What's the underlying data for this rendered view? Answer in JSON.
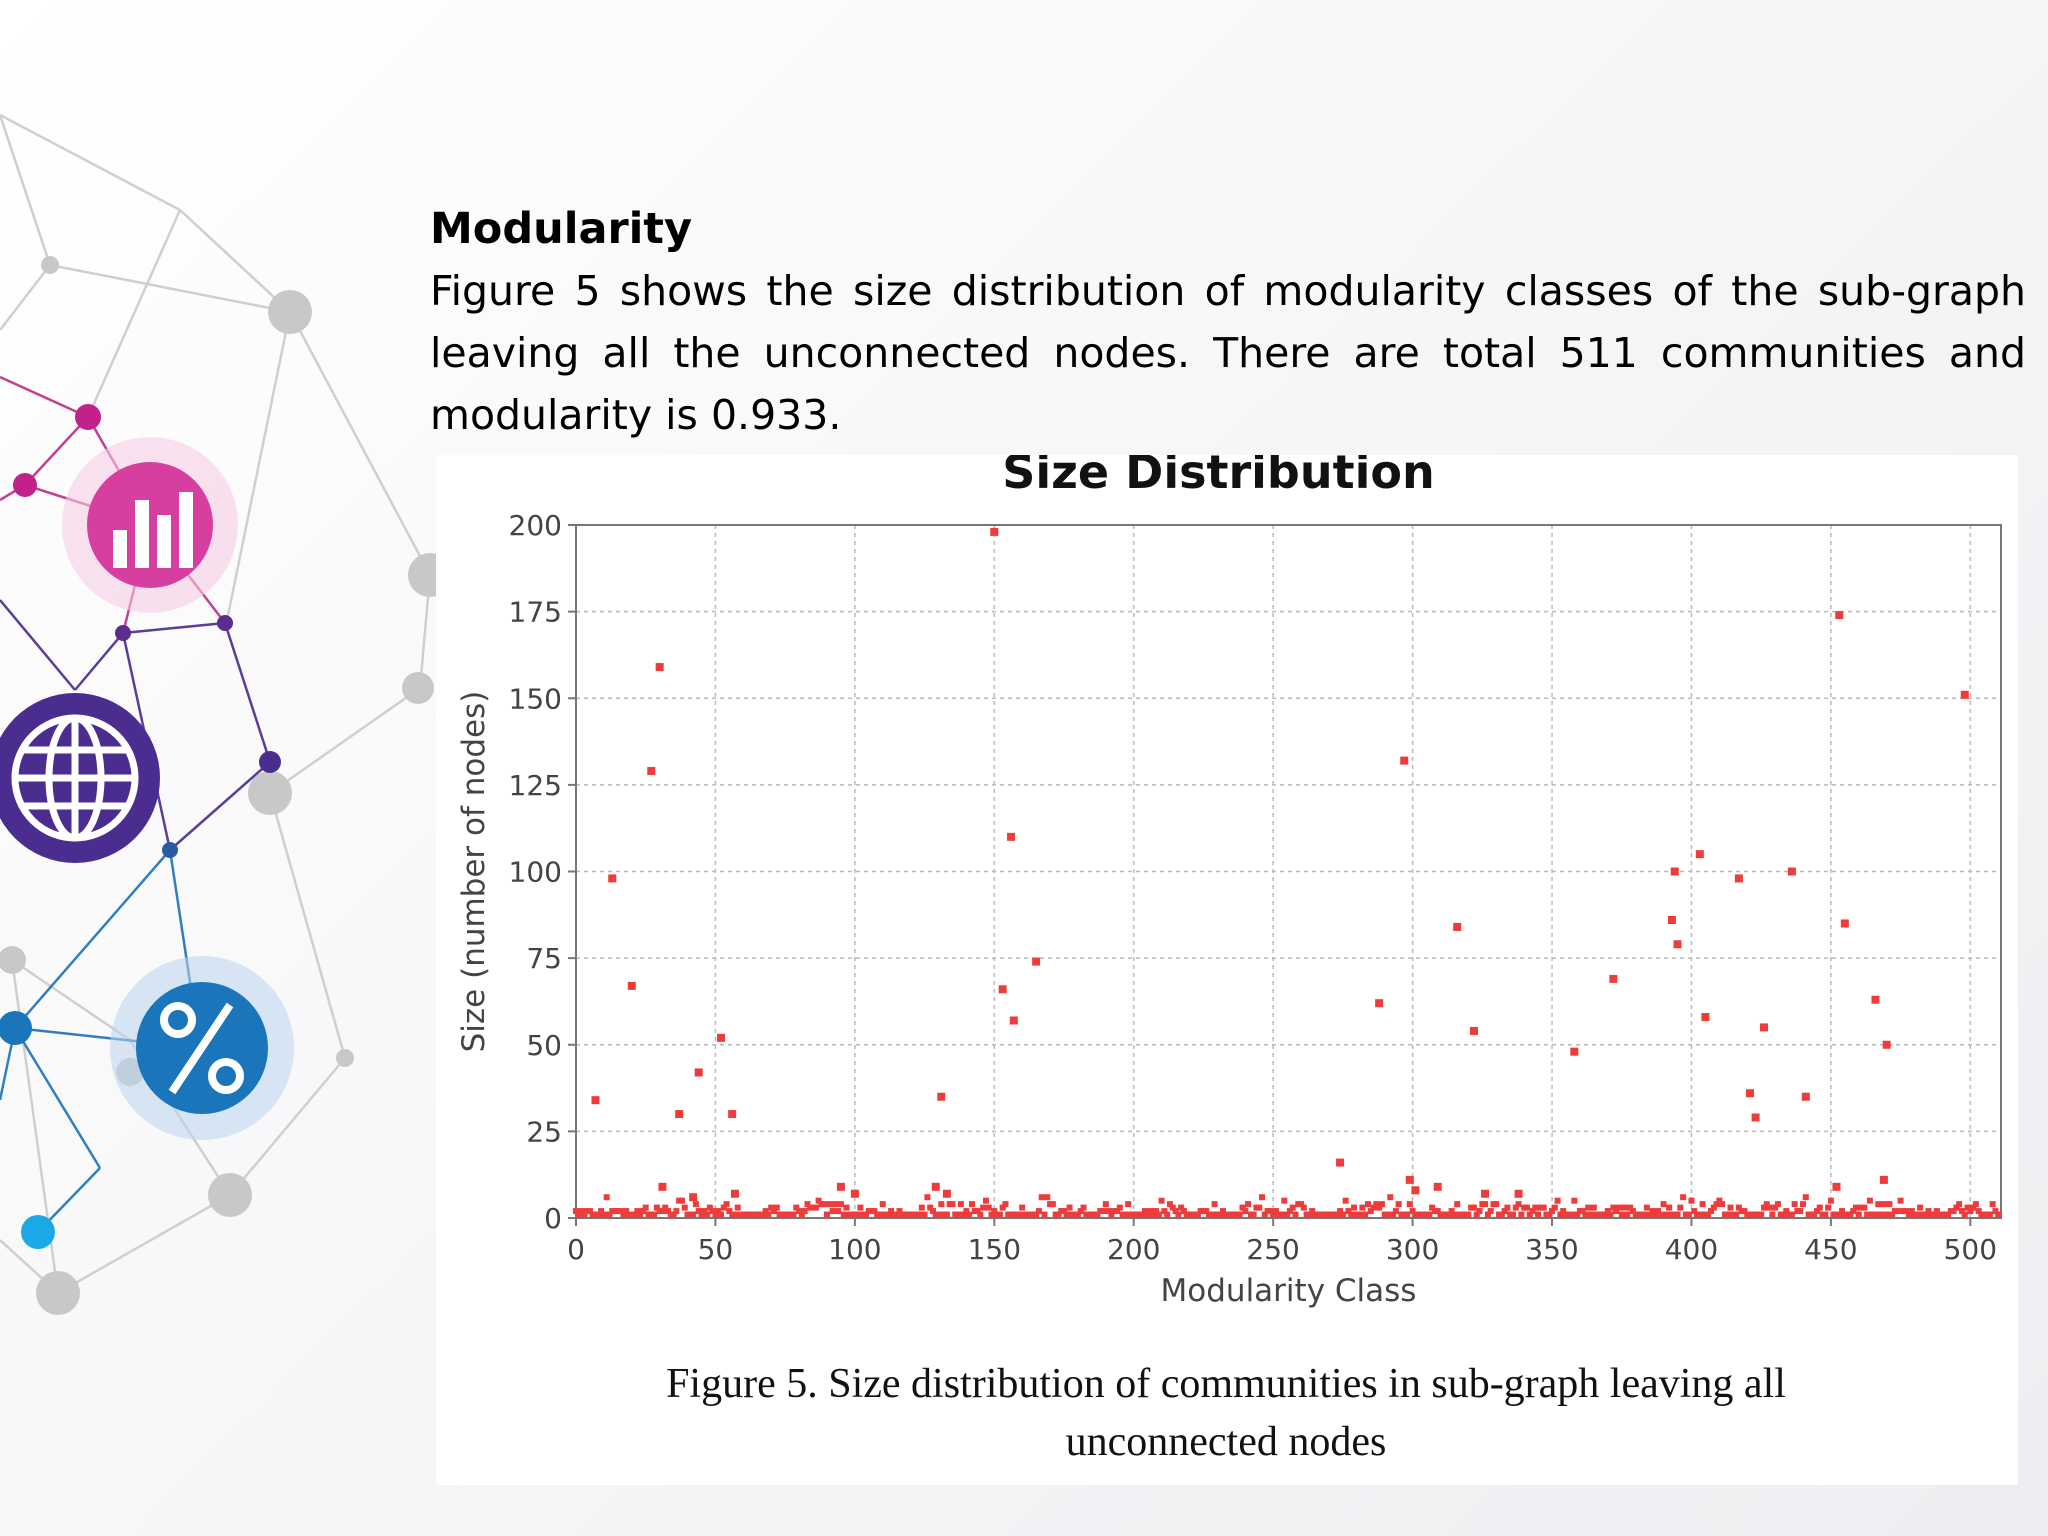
{
  "slide": {
    "heading": "Modularity",
    "body": "Figure 5 shows the size distribution of modularity classes of the sub-graph leaving all the unconnected nodes. There are total 511 communities and modularity is 0.933."
  },
  "decor": {
    "icons": [
      "bar-chart-icon",
      "globe-icon",
      "percent-icon"
    ],
    "colors": {
      "magenta": "#d63fa0",
      "purple": "#4a2d8f",
      "blue": "#1b75bb",
      "cyan": "#1aa9e6",
      "gray": "#c8c8c8"
    }
  },
  "caption": {
    "line1": "Figure 5. Size distribution of communities in sub-graph leaving all",
    "line2": "unconnected nodes"
  },
  "chart_data": {
    "type": "scatter",
    "title": "Size Distribution",
    "xlabel": "Modularity Class",
    "ylabel": "Size (number of nodes)",
    "xlim": [
      0,
      511
    ],
    "ylim": [
      0,
      200
    ],
    "x_ticks": [
      0,
      50,
      100,
      150,
      200,
      250,
      300,
      350,
      400,
      450,
      500
    ],
    "y_ticks": [
      0,
      25,
      50,
      75,
      100,
      125,
      150,
      175,
      200
    ],
    "grid": true,
    "legend": "none",
    "marker_color": "#ee3b3b",
    "points": [
      [
        7,
        34
      ],
      [
        13,
        98
      ],
      [
        20,
        67
      ],
      [
        27,
        129
      ],
      [
        30,
        159
      ],
      [
        31,
        9
      ],
      [
        37,
        30
      ],
      [
        42,
        6
      ],
      [
        44,
        42
      ],
      [
        52,
        52
      ],
      [
        56,
        30
      ],
      [
        57,
        7
      ],
      [
        95,
        9
      ],
      [
        100,
        7
      ],
      [
        129,
        9
      ],
      [
        131,
        35
      ],
      [
        133,
        7
      ],
      [
        150,
        198
      ],
      [
        153,
        66
      ],
      [
        156,
        110
      ],
      [
        157,
        57
      ],
      [
        165,
        74
      ],
      [
        274,
        16
      ],
      [
        288,
        62
      ],
      [
        297,
        132
      ],
      [
        299,
        11
      ],
      [
        301,
        8
      ],
      [
        309,
        9
      ],
      [
        316,
        84
      ],
      [
        322,
        54
      ],
      [
        326,
        7
      ],
      [
        338,
        7
      ],
      [
        358,
        48
      ],
      [
        372,
        69
      ],
      [
        393,
        86
      ],
      [
        394,
        100
      ],
      [
        395,
        79
      ],
      [
        403,
        105
      ],
      [
        405,
        58
      ],
      [
        417,
        98
      ],
      [
        421,
        36
      ],
      [
        423,
        29
      ],
      [
        426,
        55
      ],
      [
        436,
        100
      ],
      [
        441,
        35
      ],
      [
        453,
        174
      ],
      [
        455,
        85
      ],
      [
        466,
        63
      ],
      [
        469,
        11
      ],
      [
        470,
        50
      ],
      [
        498,
        151
      ],
      [
        452,
        9
      ]
    ],
    "baseline_note": "remaining communities have sizes between 1 and 6"
  }
}
